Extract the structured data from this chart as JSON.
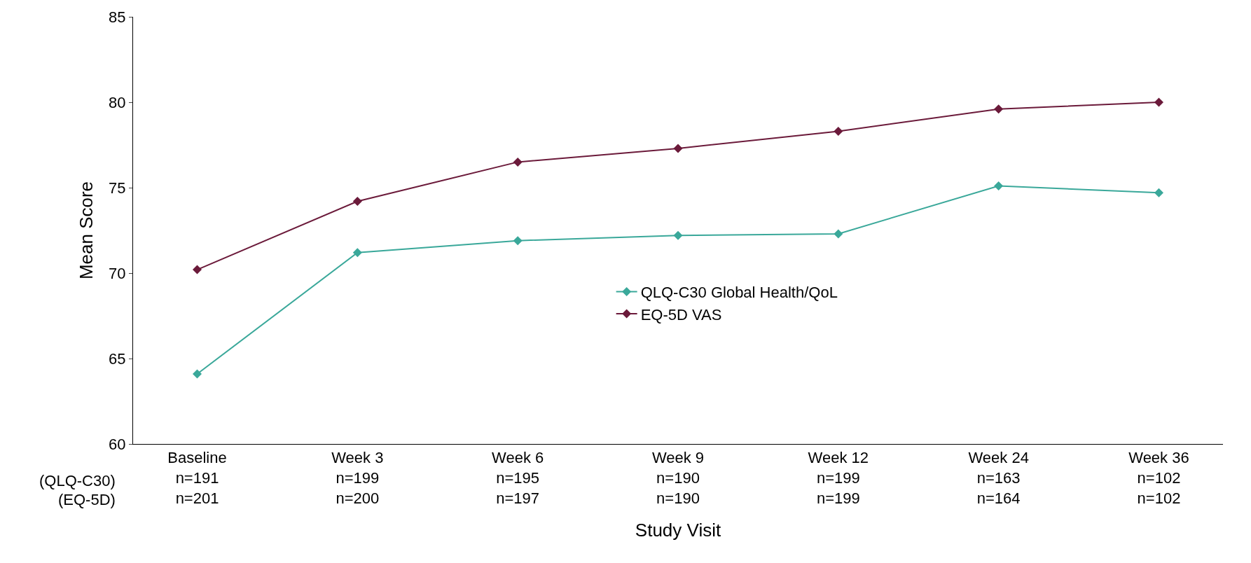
{
  "chart_data": {
    "type": "line",
    "xlabel": "Study Visit",
    "ylabel": "Mean Score",
    "categories": [
      "Baseline\nn=191\nn=201",
      "Week 3\nn=199\nn=200",
      "Week 6\nn=195\nn=197",
      "Week 9\nn=190\nn=190",
      "Week 12\nn=199\nn=199",
      "Week 24\nn=163\nn=164",
      "Week 36\nn=102\nn=102"
    ],
    "series": [
      {
        "name": "QLQ-C30 Global Health/QoL",
        "color": "#3aa89a",
        "values": [
          64.1,
          71.2,
          71.9,
          72.2,
          72.3,
          75.1,
          74.7
        ]
      },
      {
        "name": "EQ-5D VAS",
        "color": "#6b1a3a",
        "values": [
          70.2,
          74.2,
          76.5,
          77.3,
          78.3,
          79.6,
          80.0
        ]
      }
    ],
    "ylim": [
      60,
      85
    ],
    "yticks": [
      60,
      65,
      70,
      75,
      80,
      85
    ],
    "annotations": [
      "(QLQ-C30)",
      "(EQ-5D)"
    ],
    "legend": "center",
    "marker": "diamond",
    "line_style": "solid"
  }
}
